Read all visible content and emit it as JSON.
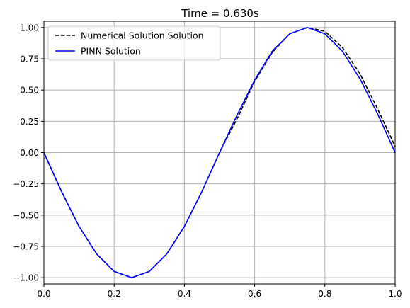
{
  "chart_data": {
    "type": "line",
    "title": "Time = 0.630s",
    "xlabel": "",
    "ylabel": "",
    "xlim": [
      0.0,
      1.0
    ],
    "ylim": [
      -1.05,
      1.05
    ],
    "grid": true,
    "legend_position": "upper-left",
    "x_ticks": [
      0.0,
      0.2,
      0.4,
      0.6,
      0.8,
      1.0
    ],
    "x_tick_labels": [
      "0.0",
      "0.2",
      "0.4",
      "0.6",
      "0.8",
      "1.0"
    ],
    "y_ticks": [
      1.0,
      0.75,
      0.5,
      0.25,
      0.0,
      -0.25,
      -0.5,
      -0.75,
      -1.0
    ],
    "y_tick_labels": [
      "1.00",
      "0.75",
      "0.50",
      "0.25",
      "0.00",
      "−0.25",
      "−0.50",
      "−0.75",
      "−1.00"
    ],
    "x": [
      0.0,
      0.05,
      0.1,
      0.15,
      0.2,
      0.25,
      0.3,
      0.35,
      0.4,
      0.45,
      0.5,
      0.55,
      0.6,
      0.65,
      0.7,
      0.75,
      0.8,
      0.85,
      0.9,
      0.95,
      1.0
    ],
    "series": [
      {
        "name": "Numerical Solution Solution",
        "color": "#000000",
        "style": "dashed",
        "values": [
          0.0,
          -0.31,
          -0.59,
          -0.81,
          -0.95,
          -1.0,
          -0.95,
          -0.81,
          -0.59,
          -0.31,
          0.0,
          0.27,
          0.57,
          0.8,
          0.95,
          1.0,
          0.97,
          0.84,
          0.63,
          0.35,
          0.05
        ]
      },
      {
        "name": "PINN Solution",
        "color": "#0000ff",
        "style": "solid",
        "values": [
          0.0,
          -0.31,
          -0.59,
          -0.81,
          -0.95,
          -1.0,
          -0.95,
          -0.81,
          -0.59,
          -0.31,
          0.0,
          0.3,
          0.58,
          0.81,
          0.95,
          1.0,
          0.95,
          0.81,
          0.59,
          0.31,
          0.0
        ]
      }
    ]
  }
}
